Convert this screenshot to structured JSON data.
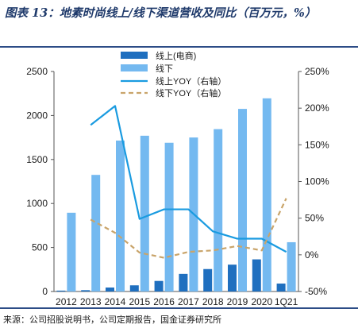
{
  "title": "图表 13：地素时尚线上/线下渠道营收及同比（百万元，%）",
  "source": "来源：公司招股说明书，公司定期报告，国金证券研究所",
  "colors": {
    "online_bar": "#1f6fbf",
    "offline_bar": "#74b9f0",
    "online_yoy": "#1a9be0",
    "offline_yoy": "#c9a46a",
    "rule": "#2c4c86"
  },
  "chart_data": {
    "type": "bar",
    "categories": [
      "2012",
      "2013",
      "2014",
      "2015",
      "2016",
      "2017",
      "2018",
      "2019",
      "2020",
      "1Q21"
    ],
    "series": [
      {
        "name": "线上(电商)",
        "type": "bar",
        "axis": "left",
        "values": [
          10,
          15,
          45,
          70,
          120,
          200,
          255,
          305,
          365,
          90
        ]
      },
      {
        "name": "线下",
        "type": "bar",
        "axis": "left",
        "values": [
          895,
          1325,
          1715,
          1770,
          1690,
          1750,
          1845,
          2075,
          2195,
          560
        ]
      },
      {
        "name": "线上YOY（右轴）",
        "type": "line",
        "axis": "right",
        "values": [
          null,
          1.77,
          2.03,
          0.49,
          0.62,
          0.62,
          0.32,
          0.22,
          0.22,
          0.04
        ]
      },
      {
        "name": "线下YOY（右轴）",
        "type": "line",
        "axis": "right",
        "dashed": true,
        "values": [
          null,
          0.48,
          0.3,
          0.03,
          -0.04,
          0.04,
          0.06,
          0.12,
          0.06,
          0.77
        ]
      }
    ],
    "y_left": {
      "min": 0,
      "max": 2500,
      "ticks": [
        0,
        500,
        1000,
        1500,
        2000,
        2500
      ]
    },
    "y_right": {
      "min": -0.5,
      "max": 2.5,
      "ticks": [
        -0.5,
        0,
        0.5,
        1,
        1.5,
        2,
        2.5
      ],
      "tick_labels": [
        "-50%",
        "0%",
        "50%",
        "100%",
        "150%",
        "200%",
        "250%"
      ]
    },
    "legend_position": "top-center"
  }
}
